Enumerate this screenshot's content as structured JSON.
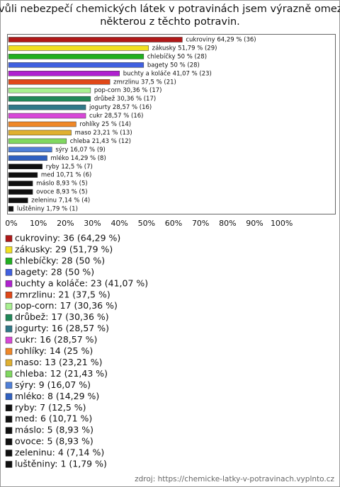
{
  "chart_data": {
    "type": "hbar",
    "title": [
      "Kvůli nebezpečí chemických látek v potravinách jsem výrazně omezil",
      "některou z těchto potravin."
    ],
    "categories": [
      "cukroviny",
      "zákusky",
      "chlebíčky",
      "bagety",
      "buchty a koláče",
      "zmrzlinu",
      "pop-corn",
      "drůbež",
      "jogurty",
      "cukr",
      "rohlíky",
      "maso",
      "chleba",
      "sýry",
      "mléko",
      "ryby",
      "med",
      "máslo",
      "ovoce",
      "zeleninu",
      "luštěniny"
    ],
    "values": [
      64.29,
      51.79,
      50,
      50,
      41.07,
      37.5,
      30.36,
      30.36,
      28.57,
      28.57,
      25,
      23.21,
      21.43,
      16.07,
      14.29,
      12.5,
      10.71,
      8.93,
      8.93,
      7.14,
      1.79
    ],
    "value_labels": [
      "cukroviny 64,29 % (36)",
      "zákusky 51,79 % (29)",
      "chlebíčky 50 % (28)",
      "bagety 50 % (28)",
      "buchty a koláče 41,07 % (23)",
      "zmrzlinu 37,5 % (21)",
      "pop-corn 30,36 % (17)",
      "drůbež 30,36 % (17)",
      "jogurty 28,57 % (16)",
      "cukr 28,57 % (16)",
      "rohlíky 25 % (14)",
      "maso 23,21 % (13)",
      "chleba 21,43 % (12)",
      "sýry 16,07 % (9)",
      "mléko 14,29 % (8)",
      "ryby 12,5 % (7)",
      "med 10,71 % (6)",
      "máslo 8,93 % (5)",
      "ovoce 8,93 % (5)",
      "zeleninu 7,14 % (4)",
      "luštěniny 1,79 % (1)"
    ],
    "legend_labels": [
      "cukroviny: 36 (64,29 %)",
      "zákusky: 29 (51,79 %)",
      "chlebíčky: 28 (50 %)",
      "bagety: 28 (50 %)",
      "buchty a koláče: 23 (41,07 %)",
      "zmrzlinu: 21 (37,5 %)",
      "pop-corn: 17 (30,36 %)",
      "drůbež: 17 (30,36 %)",
      "jogurty: 16 (28,57 %)",
      "cukr: 16 (28,57 %)",
      "rohlíky: 14 (25 %)",
      "maso: 13 (23,21 %)",
      "chleba: 12 (21,43 %)",
      "sýry: 9 (16,07 %)",
      "mléko: 8 (14,29 %)",
      "ryby: 7 (12,5 %)",
      "med: 6 (10,71 %)",
      "máslo: 5 (8,93 %)",
      "ovoce: 5 (8,93 %)",
      "zeleninu: 4 (7,14 %)",
      "luštěniny: 1 (1,79 %)"
    ],
    "colors": [
      "#b01818",
      "#f2e020",
      "#20b020",
      "#4060e0",
      "#b020d0",
      "#e04818",
      "#a8f090",
      "#208858",
      "#307888",
      "#d848d8",
      "#f08828",
      "#e0b030",
      "#80d860",
      "#5080d8",
      "#3060c0",
      "#101010",
      "#101010",
      "#101010",
      "#101010",
      "#101010",
      "#101010"
    ],
    "xlim": [
      0,
      120
    ],
    "xticks": [
      {
        "value": 0,
        "label": "0%"
      },
      {
        "value": 10,
        "label": "10%"
      },
      {
        "value": 20,
        "label": "20%"
      },
      {
        "value": 30,
        "label": "30%"
      },
      {
        "value": 40,
        "label": "40%"
      },
      {
        "value": 50,
        "label": "50%"
      },
      {
        "value": 60,
        "label": "60%"
      },
      {
        "value": 70,
        "label": "70%"
      },
      {
        "value": 80,
        "label": "80%"
      },
      {
        "value": 90,
        "label": "90%"
      },
      {
        "value": 100,
        "label": "100%"
      }
    ],
    "source": "zdroj: https://chemicke-latky-v-potravinach.vyplnto.cz"
  }
}
